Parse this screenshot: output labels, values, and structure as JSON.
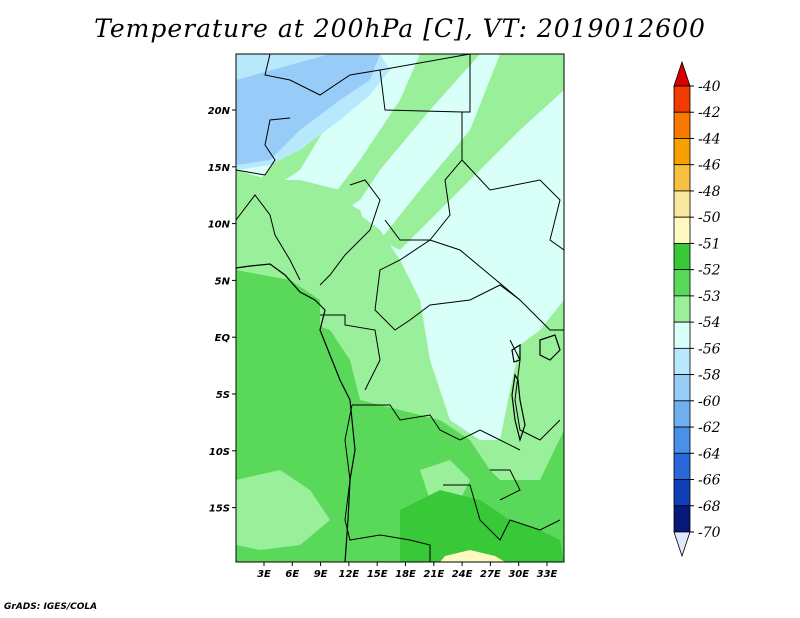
{
  "title": "Temperature at 200hPa [C], VT: 2019012600",
  "footer": "GrADS: IGES/COLA",
  "map": {
    "lat_labels": [
      "20N",
      "15N",
      "10N",
      "5N",
      "EQ",
      "5S",
      "10S",
      "15S"
    ],
    "lon_labels": [
      "3E",
      "6E",
      "9E",
      "12E",
      "15E",
      "18E",
      "21E",
      "24E",
      "27E",
      "30E",
      "33E"
    ],
    "lat_range": [
      -20,
      25
    ],
    "lon_range": [
      0,
      35
    ]
  },
  "colorbar": {
    "labels": [
      "-40",
      "-42",
      "-44",
      "-46",
      "-48",
      "-50",
      "-51",
      "-52",
      "-53",
      "-54",
      "-56",
      "-58",
      "-60",
      "-62",
      "-64",
      "-66",
      "-68",
      "-70"
    ],
    "colors": [
      "#d80000",
      "#f03c00",
      "#f87800",
      "#f8a000",
      "#f8c040",
      "#f8e8a0",
      "#fff8c0",
      "#38c838",
      "#5ad85a",
      "#9af09a",
      "#d8fff8",
      "#b8e8fc",
      "#98ccf8",
      "#70b0f0",
      "#4890e8",
      "#2868d8",
      "#1040b8",
      "#081878",
      "#e0e8ff"
    ]
  }
}
